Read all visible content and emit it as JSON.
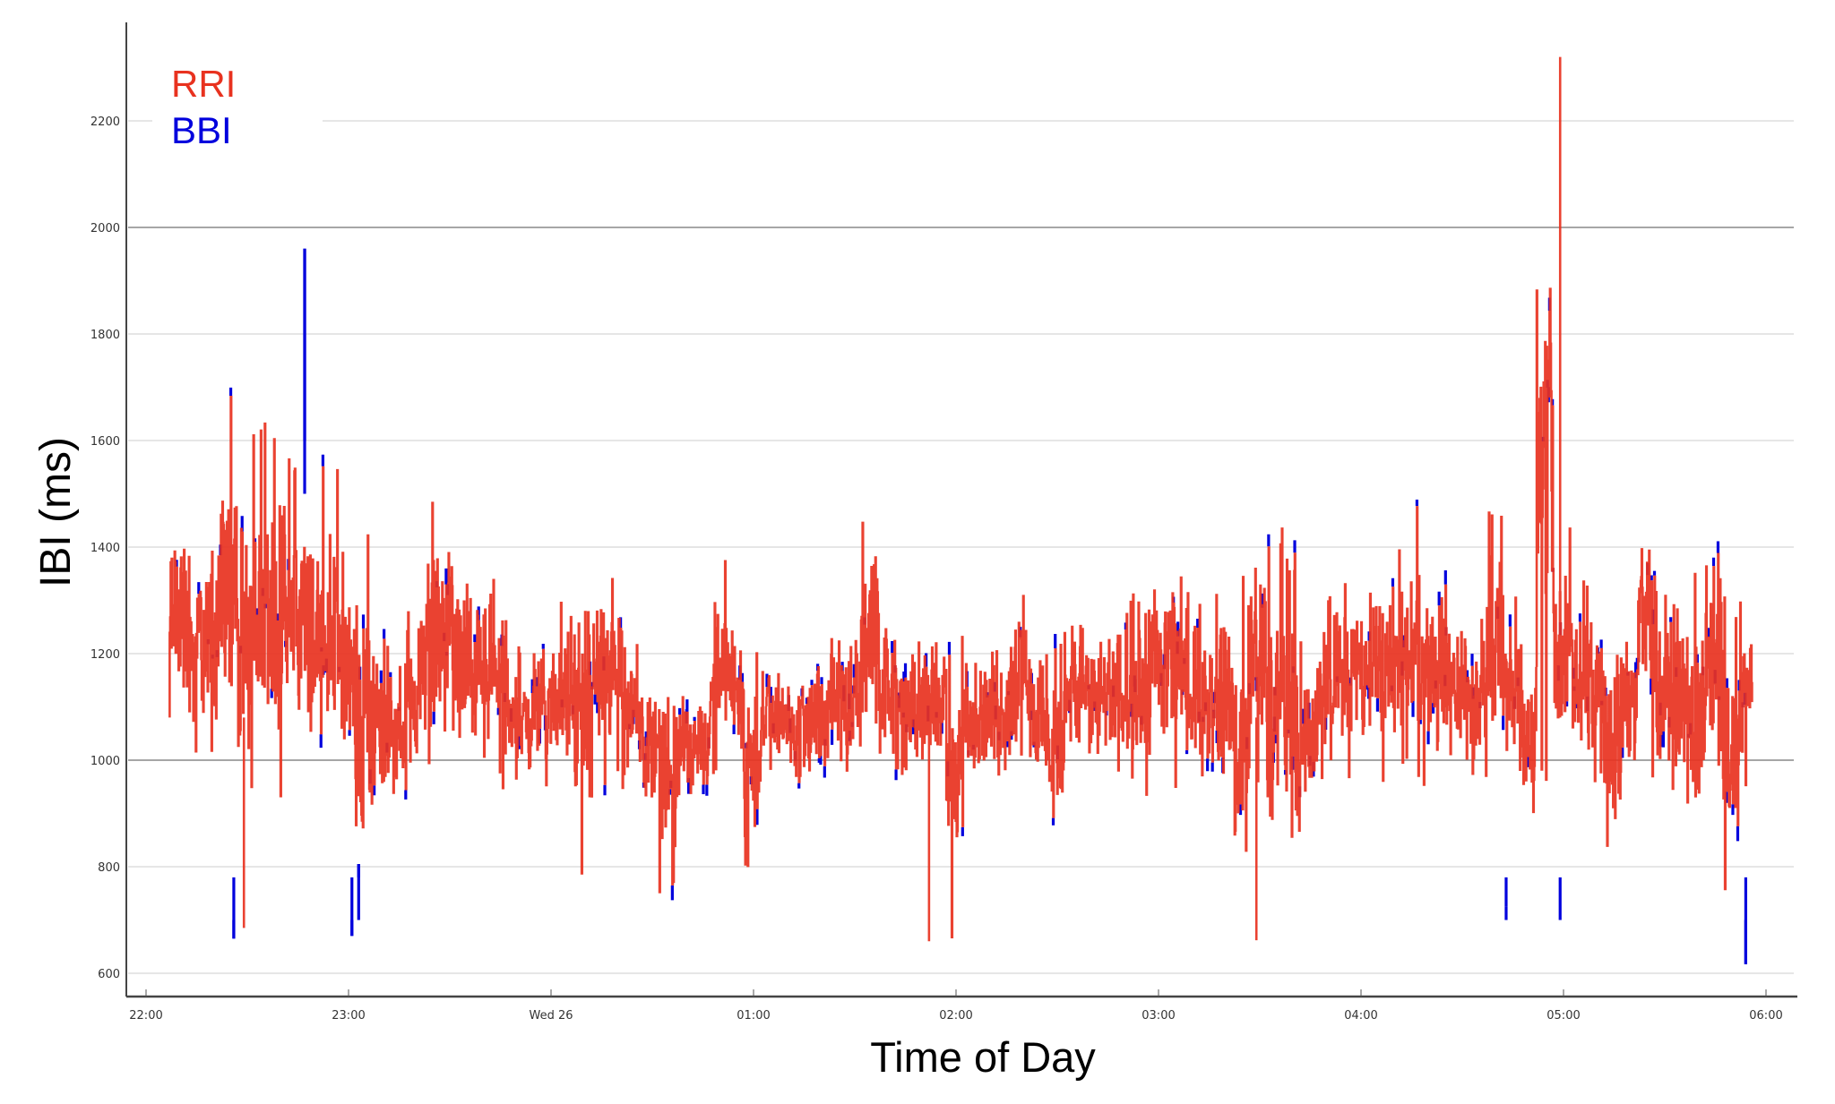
{
  "chart_data": {
    "type": "line",
    "title": "",
    "xlabel": "Time of Day",
    "ylabel": "IBI (ms)",
    "ylim": [
      560,
      2380
    ],
    "yticks": [
      600,
      800,
      1000,
      1200,
      1400,
      1600,
      1800,
      2000,
      2200
    ],
    "ytick_labels": [
      "600",
      "800",
      "1000",
      "1200",
      "1400",
      "1600",
      "1800",
      "2000",
      "2200"
    ],
    "xticks_minutes_from_2200": [
      0,
      60,
      120,
      180,
      240,
      300,
      360,
      420,
      480
    ],
    "xtick_labels": [
      "22:00",
      "23:00",
      "Wed 26",
      "01:00",
      "02:00",
      "03:00",
      "04:00",
      "05:00",
      "06:00"
    ],
    "grid": true,
    "emphasized_gridlines": [
      1000,
      2000
    ],
    "legend": {
      "position": "upper-left",
      "entries": [
        {
          "label": "RRI",
          "color": "#E8321F"
        },
        {
          "label": "BBI",
          "color": "#0000DD"
        }
      ]
    },
    "x_range_minutes": [
      7,
      476
    ],
    "series": [
      {
        "name": "RRI",
        "color": "#E8321F",
        "envelope_note": "dense beat-to-beat series; per-bin min/max IBI (ms) over 5-minute bins starting 22:07",
        "bin_start_minutes": [
          7,
          12,
          17,
          22,
          27,
          32,
          37,
          42,
          47,
          52,
          57,
          62,
          67,
          72,
          77,
          82,
          87,
          92,
          97,
          102,
          107,
          112,
          117,
          122,
          127,
          132,
          137,
          142,
          147,
          152,
          157,
          162,
          167,
          172,
          177,
          182,
          187,
          192,
          197,
          202,
          207,
          212,
          217,
          222,
          227,
          232,
          237,
          242,
          247,
          252,
          257,
          262,
          267,
          272,
          277,
          282,
          287,
          292,
          297,
          302,
          307,
          312,
          317,
          322,
          327,
          332,
          337,
          342,
          347,
          352,
          357,
          362,
          367,
          372,
          377,
          382,
          387,
          392,
          397,
          402,
          407,
          412,
          417,
          422,
          427,
          432,
          437,
          442,
          447,
          452,
          457,
          462,
          467,
          472
        ],
        "bin_min": [
          1010,
          990,
          960,
          940,
          680,
          920,
          900,
          930,
          910,
          920,
          880,
          670,
          900,
          880,
          930,
          960,
          1000,
          940,
          950,
          930,
          920,
          930,
          950,
          930,
          780,
          950,
          940,
          950,
          930,
          750,
          900,
          950,
          960,
          1000,
          750,
          980,
          970,
          940,
          960,
          990,
          960,
          940,
          970,
          940,
          960,
          980,
          660,
          960,
          970,
          940,
          960,
          950,
          790,
          960,
          960,
          950,
          960,
          930,
          960,
          940,
          960,
          950,
          900,
          660,
          940,
          700,
          690,
          810,
          940,
          960,
          960,
          920,
          950,
          960,
          950,
          960,
          950,
          940,
          930,
          980,
          720,
          940,
          960,
          940,
          940,
          670,
          970,
          960,
          940,
          900,
          740,
          940,
          700,
          950
        ],
        "bin_max": [
          1530,
          1420,
          1520,
          1720,
          1670,
          1640,
          1640,
          1600,
          1550,
          1590,
          1430,
          1480,
          1250,
          1220,
          1320,
          1490,
          1480,
          1420,
          1380,
          1370,
          1240,
          1230,
          1260,
          1310,
          1410,
          1370,
          1360,
          1240,
          1120,
          1130,
          1140,
          1110,
          1380,
          1280,
          1220,
          1170,
          1180,
          1160,
          1200,
          1270,
          1280,
          1500,
          1280,
          1200,
          1230,
          1260,
          1240,
          1190,
          1210,
          1280,
          1400,
          1200,
          1240,
          1310,
          1280,
          1280,
          1300,
          1330,
          1400,
          1430,
          1320,
          1310,
          1330,
          1350,
          1480,
          1450,
          1400,
          1250,
          1320,
          1380,
          1380,
          1440,
          1420,
          1490,
          1380,
          1350,
          1300,
          1300,
          1480,
          1310,
          1350,
          2320,
          1480,
          1380,
          1350,
          1380,
          1260,
          1540,
          1320,
          1370,
          1370,
          1390,
          1320,
          1310
        ]
      },
      {
        "name": "BBI",
        "color": "#0000DD",
        "envelope_note": "largely overlaps RRI; visible where it exceeds RRI extremes",
        "notable_points": [
          {
            "time": "22:47",
            "minutes": 47,
            "value": 1960
          },
          {
            "time": "22:26",
            "minutes": 26,
            "value": 665
          },
          {
            "time": "23:01",
            "minutes": 61,
            "value": 670
          },
          {
            "time": "23:03",
            "minutes": 63,
            "value": 805
          },
          {
            "time": "04:43",
            "minutes": 403,
            "value": 725
          },
          {
            "time": "04:59",
            "minutes": 419,
            "value": 710
          },
          {
            "time": "05:54",
            "minutes": 474,
            "value": 617
          }
        ]
      }
    ],
    "notable_rri_points": [
      {
        "time": "04:59",
        "minutes": 419,
        "value": 2320
      },
      {
        "time": "01:52",
        "minutes": 232,
        "value": 660
      },
      {
        "time": "03:29",
        "minutes": 329,
        "value": 662
      },
      {
        "time": "22:29",
        "minutes": 29,
        "value": 685
      }
    ]
  },
  "axes": {
    "x_title": "Time of Day",
    "y_title": "IBI (ms)"
  },
  "legend": {
    "rri_label": "RRI",
    "bbi_label": "BBI"
  }
}
